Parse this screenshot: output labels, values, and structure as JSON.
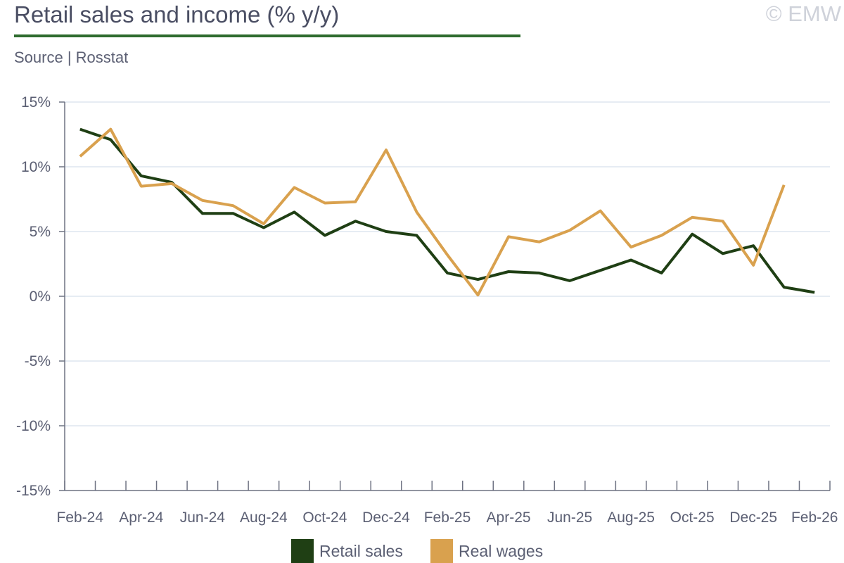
{
  "header": {
    "title": "Retail sales and income (% y/y)",
    "source": "Source | Rosstat",
    "watermark": "© EMW"
  },
  "colors": {
    "title_rule": "#2e6b2e",
    "grid": "#dde6ef",
    "axis": "#6e7282",
    "retail": "#1f3f14",
    "wages": "#d9a14e"
  },
  "chart_data": {
    "type": "line",
    "title": "Retail sales and income (% y/y)",
    "xlabel": "",
    "ylabel": "",
    "ylim": [
      -15,
      15
    ],
    "yticks": [
      15,
      10,
      5,
      0,
      -5,
      -10,
      -15
    ],
    "ytick_labels": [
      "15%",
      "10%",
      "5%",
      "0%",
      "-5%",
      "-10%",
      "-15%"
    ],
    "x": [
      "Feb-24",
      "Mar-24",
      "Apr-24",
      "May-24",
      "Jun-24",
      "Jul-24",
      "Aug-24",
      "Sep-24",
      "Oct-24",
      "Nov-24",
      "Dec-24",
      "Jan-25",
      "Feb-25",
      "Mar-25",
      "Apr-25",
      "May-25",
      "Jun-25",
      "Jul-25",
      "Aug-25",
      "Sep-25",
      "Oct-25",
      "Nov-25",
      "Dec-25",
      "Jan-26",
      "Feb-26"
    ],
    "xtick_labels": [
      "Feb-24",
      "Apr-24",
      "Jun-24",
      "Aug-24",
      "Oct-24",
      "Dec-24",
      "Feb-25",
      "Apr-25",
      "Jun-25",
      "Aug-25",
      "Oct-25",
      "Dec-25",
      "Feb-26"
    ],
    "grid": true,
    "legend_position": "bottom-center",
    "series": [
      {
        "name": "Retail sales",
        "color": "#1f3f14",
        "values": [
          12.9,
          12.1,
          9.3,
          8.8,
          6.4,
          6.4,
          5.3,
          6.5,
          4.7,
          5.8,
          5.0,
          4.7,
          1.8,
          1.3,
          1.9,
          1.8,
          1.2,
          2.0,
          2.8,
          1.8,
          4.8,
          3.3,
          3.9,
          0.7,
          0.3
        ]
      },
      {
        "name": "Real wages",
        "color": "#d9a14e",
        "values": [
          10.8,
          12.9,
          8.5,
          8.7,
          7.4,
          7.0,
          5.6,
          8.4,
          7.2,
          7.3,
          11.3,
          6.5,
          3.2,
          0.1,
          4.6,
          4.2,
          5.1,
          6.6,
          3.8,
          4.7,
          6.1,
          5.8,
          2.4,
          8.6,
          null
        ]
      }
    ]
  }
}
